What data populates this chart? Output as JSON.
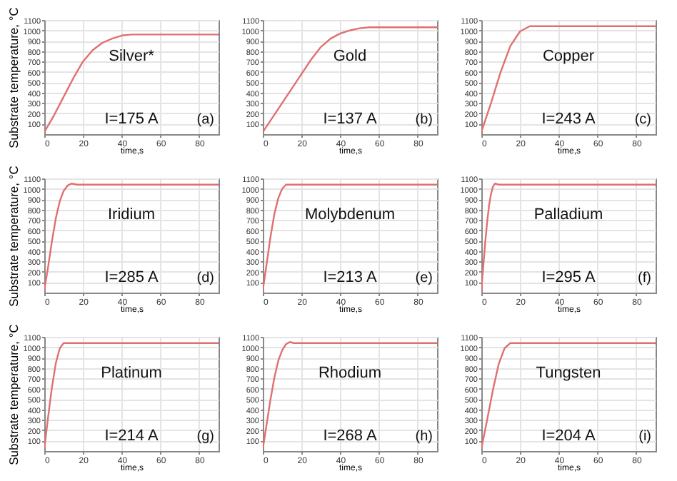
{
  "chart_data": [
    {
      "type": "line",
      "xlabel": "time,s",
      "ylabel": "Substrate temperature, °C",
      "annotations": [
        "Silver*",
        "I=175 A",
        "(a)"
      ],
      "x": [
        0,
        5,
        10,
        15,
        20,
        25,
        30,
        35,
        40,
        45,
        50,
        60,
        90
      ],
      "series": [
        {
          "color": "#e07070",
          "values": [
            20,
            180,
            360,
            540,
            700,
            810,
            880,
            920,
            950,
            960,
            960,
            960,
            960
          ]
        }
      ],
      "xlim": [
        0,
        90
      ],
      "xticks": [
        0,
        20,
        40,
        60,
        80
      ],
      "ylim": [
        0,
        1100
      ],
      "yticks": [
        100,
        200,
        300,
        400,
        500,
        600,
        700,
        800,
        900,
        1000,
        1100
      ],
      "grid": true
    },
    {
      "type": "line",
      "xlabel": "time,s",
      "annotations": [
        "Gold",
        "I=137 A",
        "(b)"
      ],
      "x": [
        0,
        10,
        20,
        25,
        30,
        35,
        40,
        45,
        50,
        55,
        60,
        90
      ],
      "series": [
        {
          "color": "#e07070",
          "values": [
            20,
            300,
            580,
            720,
            840,
            920,
            970,
            1000,
            1020,
            1030,
            1030,
            1030
          ]
        }
      ],
      "xlim": [
        0,
        90
      ],
      "xticks": [
        0,
        20,
        40,
        60,
        80
      ],
      "ylim": [
        0,
        1100
      ],
      "yticks": [
        100,
        200,
        300,
        400,
        500,
        600,
        700,
        800,
        900,
        1000,
        1100
      ],
      "grid": true
    },
    {
      "type": "line",
      "xlabel": "time,s",
      "annotations": [
        "Copper",
        "I=243 A",
        "(c)"
      ],
      "x": [
        0,
        5,
        10,
        15,
        20,
        25,
        30,
        90
      ],
      "series": [
        {
          "color": "#e07070",
          "values": [
            20,
            300,
            600,
            850,
            990,
            1040,
            1040,
            1040
          ]
        }
      ],
      "xlim": [
        0,
        90
      ],
      "xticks": [
        0,
        20,
        40,
        60,
        80
      ],
      "ylim": [
        0,
        1100
      ],
      "yticks": [
        100,
        200,
        300,
        400,
        500,
        600,
        700,
        800,
        900,
        1000,
        1100
      ],
      "grid": true
    },
    {
      "type": "line",
      "xlabel": "time,s",
      "ylabel": "Substrate temperature, °C",
      "annotations": [
        "Iridium",
        "I=285 A",
        "(d)"
      ],
      "x": [
        0,
        2,
        4,
        6,
        8,
        10,
        12,
        14,
        17,
        90
      ],
      "series": [
        {
          "color": "#e07070",
          "values": [
            20,
            250,
            500,
            720,
            880,
            980,
            1030,
            1050,
            1040,
            1040
          ]
        }
      ],
      "xlim": [
        0,
        90
      ],
      "xticks": [
        0,
        20,
        40,
        60,
        80
      ],
      "ylim": [
        0,
        1100
      ],
      "yticks": [
        100,
        200,
        300,
        400,
        500,
        600,
        700,
        800,
        900,
        1000,
        1100
      ],
      "grid": true
    },
    {
      "type": "line",
      "xlabel": "time,s",
      "annotations": [
        "Molybdenum",
        "I=213 A",
        "(e)"
      ],
      "x": [
        0,
        2,
        4,
        6,
        8,
        10,
        12,
        14,
        90
      ],
      "series": [
        {
          "color": "#e07070",
          "values": [
            20,
            280,
            540,
            760,
            910,
            1000,
            1040,
            1040,
            1040
          ]
        }
      ],
      "xlim": [
        0,
        90
      ],
      "xticks": [
        0,
        20,
        40,
        60,
        80
      ],
      "ylim": [
        0,
        1100
      ],
      "yticks": [
        100,
        200,
        300,
        400,
        500,
        600,
        700,
        800,
        900,
        1000,
        1100
      ],
      "grid": true
    },
    {
      "type": "line",
      "xlabel": "time,s",
      "annotations": [
        "Palladium",
        "I=295 A",
        "(f)"
      ],
      "x": [
        0,
        1,
        2,
        3,
        4,
        5,
        6,
        7,
        9,
        90
      ],
      "series": [
        {
          "color": "#e07070",
          "values": [
            20,
            250,
            480,
            680,
            840,
            950,
            1020,
            1050,
            1040,
            1040
          ]
        }
      ],
      "xlim": [
        0,
        90
      ],
      "xticks": [
        0,
        20,
        40,
        60,
        80
      ],
      "ylim": [
        0,
        1100
      ],
      "yticks": [
        100,
        200,
        300,
        400,
        500,
        600,
        700,
        800,
        900,
        1000,
        1100
      ],
      "grid": true
    },
    {
      "type": "line",
      "xlabel": "time,s",
      "ylabel": "Substrate temperature, °C",
      "annotations": [
        "Platinum",
        "I=214 A",
        "(g)"
      ],
      "x": [
        0,
        2,
        4,
        6,
        8,
        10,
        12,
        90
      ],
      "series": [
        {
          "color": "#e07070",
          "values": [
            20,
            330,
            620,
            850,
            990,
            1040,
            1040,
            1040
          ]
        }
      ],
      "xlim": [
        0,
        90
      ],
      "xticks": [
        0,
        20,
        40,
        60,
        80
      ],
      "ylim": [
        0,
        1100
      ],
      "yticks": [
        100,
        200,
        300,
        400,
        500,
        600,
        700,
        800,
        900,
        1000,
        1100
      ],
      "grid": true
    },
    {
      "type": "line",
      "xlabel": "time,s",
      "annotations": [
        "Rhodium",
        "I=268 A",
        "(h)"
      ],
      "x": [
        0,
        2,
        4,
        6,
        8,
        10,
        12,
        14,
        16,
        90
      ],
      "series": [
        {
          "color": "#e07070",
          "values": [
            20,
            260,
            500,
            710,
            870,
            970,
            1030,
            1050,
            1040,
            1040
          ]
        }
      ],
      "xlim": [
        0,
        90
      ],
      "xticks": [
        0,
        20,
        40,
        60,
        80
      ],
      "ylim": [
        0,
        1100
      ],
      "yticks": [
        100,
        200,
        300,
        400,
        500,
        600,
        700,
        800,
        900,
        1000,
        1100
      ],
      "grid": true
    },
    {
      "type": "line",
      "xlabel": "time,s",
      "annotations": [
        "Tungsten",
        "I=204 A",
        "(i)"
      ],
      "x": [
        0,
        3,
        6,
        9,
        12,
        15,
        18,
        90
      ],
      "series": [
        {
          "color": "#e07070",
          "values": [
            20,
            300,
            590,
            840,
            990,
            1040,
            1040,
            1040
          ]
        }
      ],
      "xlim": [
        0,
        90
      ],
      "xticks": [
        0,
        20,
        40,
        60,
        80
      ],
      "ylim": [
        0,
        1100
      ],
      "yticks": [
        100,
        200,
        300,
        400,
        500,
        600,
        700,
        800,
        900,
        1000,
        1100
      ],
      "grid": true
    }
  ]
}
